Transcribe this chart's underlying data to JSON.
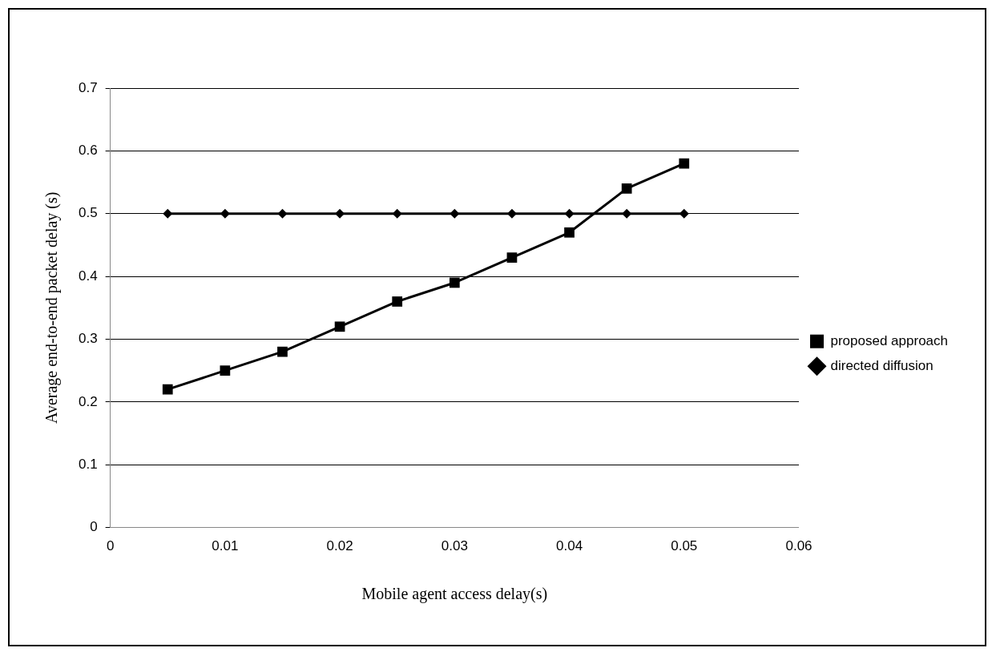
{
  "chart_data": {
    "type": "line",
    "xlabel": "Mobile agent access delay(s)",
    "ylabel": "Average end-to-end packet delay (s)",
    "x": [
      0.005,
      0.01,
      0.015,
      0.02,
      0.025,
      0.03,
      0.035,
      0.04,
      0.045,
      0.05
    ],
    "series": [
      {
        "name": "proposed approach",
        "color": "#000000",
        "marker": "square",
        "values": [
          0.22,
          0.25,
          0.28,
          0.32,
          0.36,
          0.39,
          0.43,
          0.47,
          0.54,
          0.58
        ]
      },
      {
        "name": "directed diffusion",
        "color": "#000000",
        "marker": "diamond",
        "values": [
          0.5,
          0.5,
          0.5,
          0.5,
          0.5,
          0.5,
          0.5,
          0.5,
          0.5,
          0.5
        ]
      }
    ],
    "xlim": [
      0,
      0.06
    ],
    "xticks": [
      0,
      0.01,
      0.02,
      0.03,
      0.04,
      0.05,
      0.06
    ],
    "ylim": [
      0,
      0.7
    ],
    "yticks": [
      0,
      0.1,
      0.2,
      0.3,
      0.4,
      0.5,
      0.6,
      0.7
    ],
    "grid": "y",
    "legend": "right",
    "line_style": "solid"
  }
}
